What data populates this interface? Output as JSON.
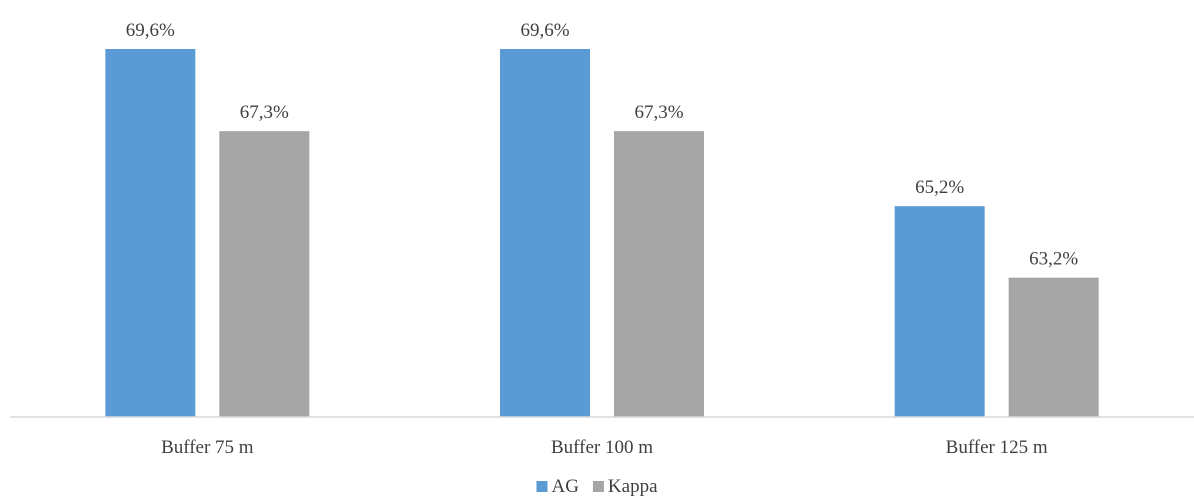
{
  "chart_data": {
    "type": "bar",
    "categories": [
      "Buffer 75 m",
      "Buffer 100 m",
      "Buffer 125 m"
    ],
    "series": [
      {
        "name": "AG",
        "values": [
          69.6,
          69.6,
          65.2
        ],
        "labels": [
          "69,6%",
          "69,6%",
          "65,2%"
        ],
        "color": "#5B9BD5"
      },
      {
        "name": "Kappa",
        "values": [
          67.3,
          67.3,
          63.2
        ],
        "labels": [
          "67,3%",
          "67,3%",
          "63,2%"
        ],
        "color": "#A5A5A5"
      }
    ],
    "title": "",
    "xlabel": "",
    "ylabel": "",
    "ylim": [
      59.3,
      69.6
    ],
    "grid": false,
    "legend_position": "bottom",
    "axis_color": "#D9D9D9"
  }
}
